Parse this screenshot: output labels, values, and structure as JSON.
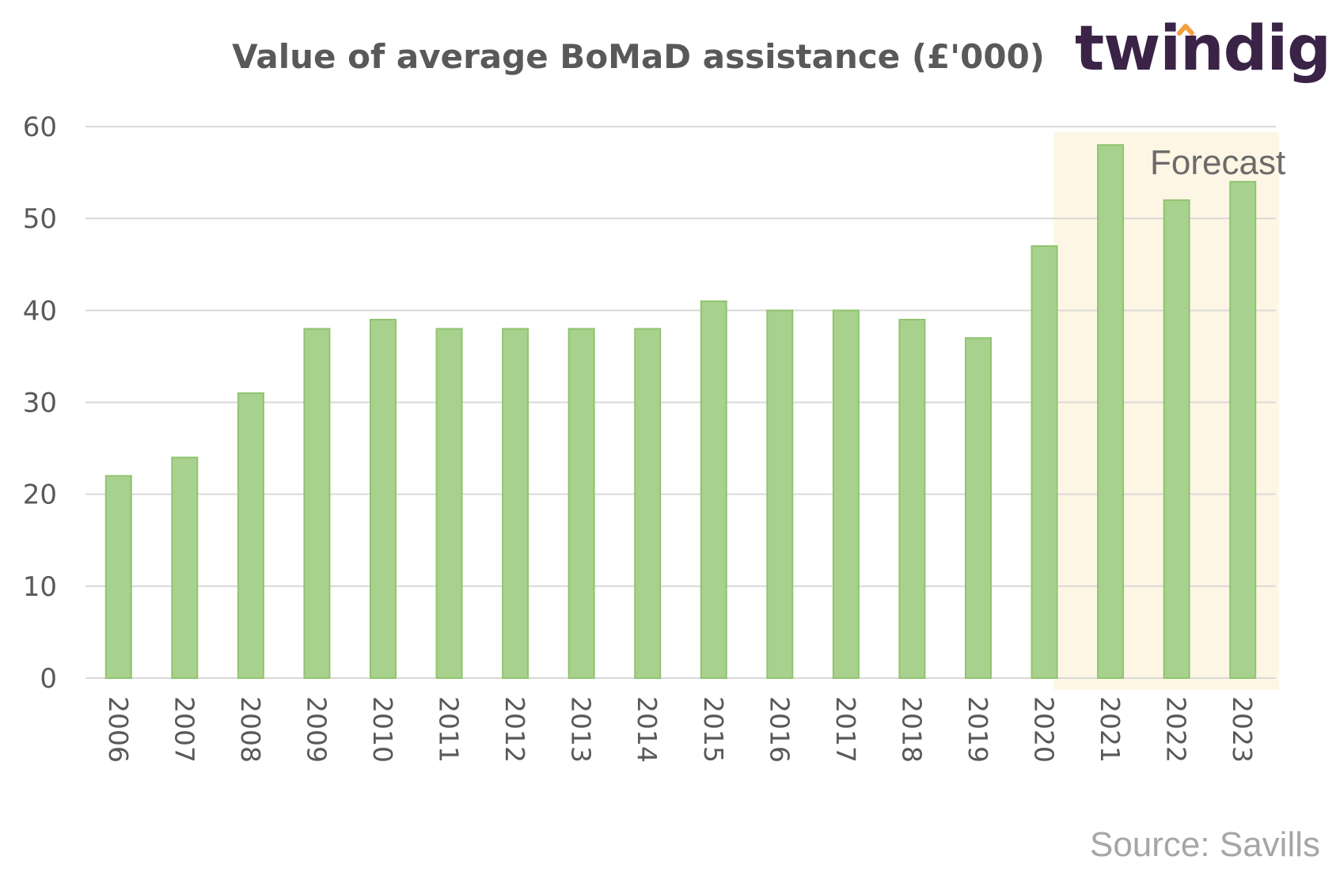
{
  "title": "Value of average BoMaD assistance (£'000)",
  "logo": {
    "text": "twindig",
    "text_color": "#3a2347",
    "accent_color": "#f2a03d"
  },
  "source": "Source: Savills",
  "colors": {
    "bar": "#a9d18e",
    "bar_edge": "#8fc46f",
    "forecast_band": "#fef6e4",
    "grid": "#d9d9d9",
    "axis_text": "#595959"
  },
  "chart_data": {
    "type": "bar",
    "title": "Value of average BoMaD assistance (£'000)",
    "xlabel": "",
    "ylabel": "",
    "categories": [
      "2006",
      "2007",
      "2008",
      "2009",
      "2010",
      "2011",
      "2012",
      "2013",
      "2014",
      "2015",
      "2016",
      "2017",
      "2018",
      "2019",
      "2020",
      "2021",
      "2022",
      "2023"
    ],
    "values": [
      22,
      24,
      31,
      38,
      39,
      38,
      38,
      38,
      38,
      41,
      40,
      40,
      39,
      37,
      47,
      58,
      52,
      54
    ],
    "ylim": [
      0,
      60
    ],
    "yticks": [
      0,
      10,
      20,
      30,
      40,
      50,
      60
    ],
    "grid": true,
    "legend": "none",
    "annotations": [
      {
        "text": "Forecast",
        "start_category": "2020",
        "end_category": "2023"
      }
    ]
  }
}
